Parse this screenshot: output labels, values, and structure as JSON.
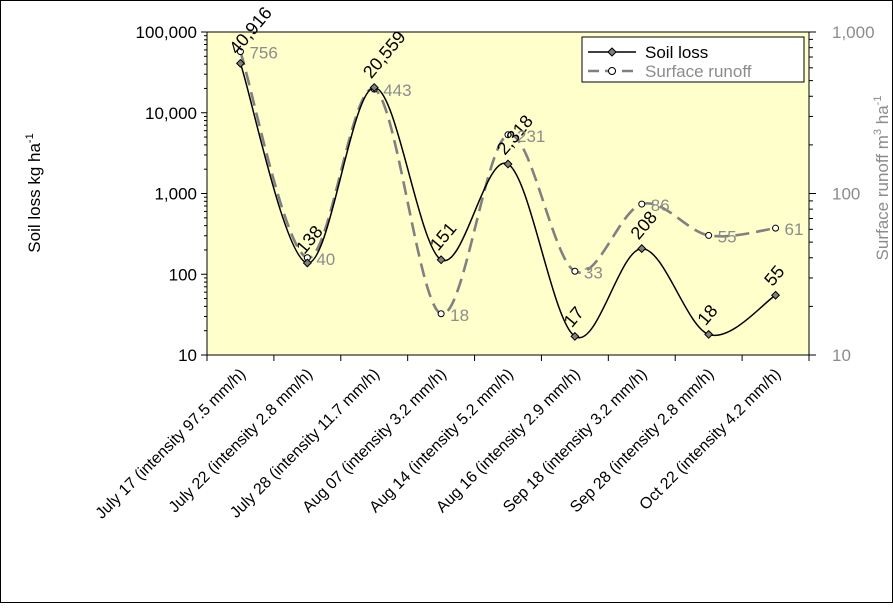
{
  "chart_data": {
    "type": "line",
    "categories": [
      "July 17 (intensity 97.5 mm/h)",
      "July 22 (intensity 2.8 mm/h)",
      "July 28 (intensity 11.7 mm/h)",
      "Aug 07 (intensity 3.2 mm/h)",
      "Aug 14 (intensity 5.2 mm/h)",
      "Aug 16 (intensity 2.9 mm/h)",
      "Sep 18 (intensity 3.2 mm/h)",
      "Sep 28 (intensity 2.8 mm/h)",
      "Oct 22 (intensity 4.2 mm/h)"
    ],
    "series": [
      {
        "name": "Soil loss",
        "axis": "left",
        "values": [
          40916,
          138,
          20559,
          151,
          2318,
          17,
          208,
          18,
          55
        ],
        "labels": [
          "40,916",
          "138",
          "20,559",
          "151",
          "2,318",
          "17",
          "208",
          "18",
          "55"
        ],
        "color": "#000000",
        "line_style": "solid",
        "marker": "diamond"
      },
      {
        "name": "Surface runoff",
        "axis": "right",
        "values": [
          756,
          40,
          443,
          18,
          231,
          33,
          86,
          55,
          61
        ],
        "labels": [
          "756",
          "40",
          "443",
          "18",
          "231",
          "33",
          "86",
          "55",
          "61"
        ],
        "color": "#8c8c8c",
        "line_style": "dashed",
        "marker": "circle"
      }
    ],
    "y_left": {
      "label_text": "Soil loss kg ha",
      "label_superscript": "-1",
      "scale": "log",
      "ylim": [
        10,
        100000
      ],
      "ticks": [
        "10",
        "100",
        "1,000",
        "10,000",
        "100,000"
      ]
    },
    "y_right": {
      "label_text": "Surface runoff m",
      "label_sup1": "3",
      "label_mid": " ha",
      "label_sup2": "-1",
      "scale": "log",
      "ylim": [
        10,
        1000
      ],
      "ticks": [
        "10",
        "100",
        "1,000"
      ]
    },
    "xlabel": "",
    "legend_position": "top-right",
    "plot_background": "#ffffcc",
    "grid": false
  }
}
